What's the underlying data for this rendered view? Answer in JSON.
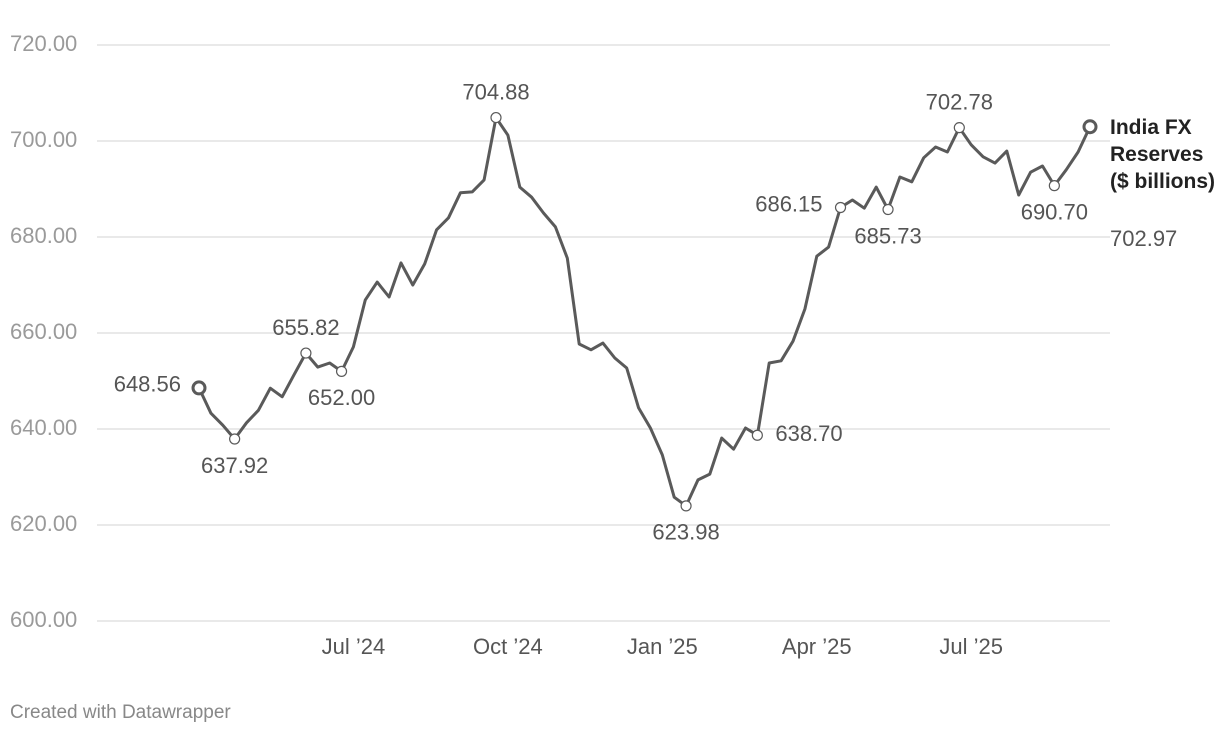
{
  "chart_data": {
    "type": "line",
    "categories": [
      null,
      null,
      null,
      null,
      null,
      null,
      null,
      null,
      null,
      null,
      null,
      null,
      null,
      "Jul ’24",
      null,
      null,
      null,
      null,
      null,
      null,
      null,
      null,
      null,
      null,
      null,
      null,
      "Oct ’24",
      null,
      null,
      null,
      null,
      null,
      null,
      null,
      null,
      null,
      null,
      null,
      null,
      "Jan ’25",
      null,
      null,
      null,
      null,
      null,
      null,
      null,
      null,
      null,
      null,
      null,
      null,
      "Apr ’25",
      null,
      null,
      null,
      null,
      null,
      null,
      null,
      null,
      null,
      null,
      null,
      null,
      "Jul ’25",
      null,
      null,
      null,
      null,
      null,
      null,
      null,
      null,
      null,
      null
    ],
    "series": [
      {
        "name": "India FX Reserves ($ billions)",
        "color": "#5a5a5a",
        "values": [
          648.56,
          643.3,
          640.8,
          637.92,
          641.3,
          643.9,
          648.5,
          646.7,
          651.3,
          655.82,
          652.9,
          653.75,
          652.0,
          657.1,
          666.9,
          670.6,
          667.5,
          674.6,
          670.0,
          674.4,
          681.5,
          684.0,
          689.2,
          689.4,
          691.9,
          704.88,
          701.2,
          690.4,
          688.3,
          685.0,
          682.1,
          675.6,
          657.7,
          656.5,
          657.9,
          654.8,
          652.7,
          644.4,
          640.2,
          634.6,
          625.8,
          623.98,
          629.4,
          630.6,
          638.1,
          635.8,
          640.2,
          638.7,
          653.75,
          654.2,
          658.3,
          665.0,
          676.0,
          677.9,
          686.15,
          687.7,
          686.0,
          690.4,
          685.73,
          692.5,
          691.5,
          696.5,
          698.75,
          697.7,
          702.78,
          699.2,
          696.7,
          695.4,
          697.9,
          688.75,
          693.5,
          694.8,
          690.7,
          694.0,
          697.7,
          702.97
        ],
        "value_labels": [
          "648.56",
          null,
          null,
          "637.92",
          null,
          null,
          null,
          null,
          null,
          "655.82",
          null,
          null,
          "652.00",
          null,
          null,
          null,
          null,
          null,
          null,
          null,
          null,
          null,
          null,
          null,
          null,
          "704.88",
          null,
          null,
          null,
          null,
          null,
          null,
          null,
          null,
          null,
          null,
          null,
          null,
          null,
          null,
          null,
          "623.98",
          null,
          null,
          null,
          null,
          null,
          "638.70",
          null,
          null,
          null,
          null,
          null,
          null,
          "686.15",
          null,
          null,
          null,
          "685.73",
          null,
          null,
          null,
          null,
          null,
          "702.78",
          null,
          null,
          null,
          null,
          null,
          null,
          null,
          "690.70",
          null,
          null,
          "702.97"
        ]
      }
    ],
    "ylim": [
      600,
      720
    ],
    "yticks": [
      {
        "value": 600,
        "label": "600.00"
      },
      {
        "value": 620,
        "label": "620.00"
      },
      {
        "value": 640,
        "label": "640.00"
      },
      {
        "value": 660,
        "label": "660.00"
      },
      {
        "value": 680,
        "label": "680.00"
      },
      {
        "value": 700,
        "label": "700.00"
      },
      {
        "value": 720,
        "label": "720.00"
      }
    ],
    "grid": true
  },
  "credit": "Created with Datawrapper"
}
